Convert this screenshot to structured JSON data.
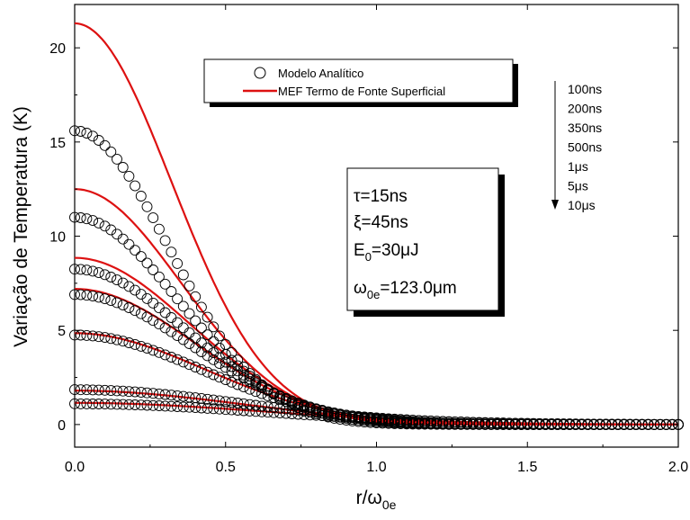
{
  "chart_data": {
    "type": "line",
    "xlabel": "r/ω",
    "xlabel_sub": "0e",
    "ylabel": "Variação de Temperatura (K)",
    "xlim": [
      0,
      2.0
    ],
    "ylim": [
      -1.2,
      22.3
    ],
    "xticks": [
      0.0,
      0.5,
      1.0,
      1.5,
      2.0
    ],
    "xtick_labels": [
      "0.0",
      "0.5",
      "1.0",
      "1.5",
      "2.0"
    ],
    "yticks": [
      0,
      5,
      10,
      15,
      20
    ],
    "ytick_labels": [
      "0",
      "5",
      "10",
      "15",
      "20"
    ],
    "legend": {
      "position": "top-center",
      "entries": [
        {
          "label": "Modelo Analítico",
          "marker": "open-circle"
        },
        {
          "label": "MEF Termo de Fonte Superficial",
          "marker": "red-line"
        }
      ]
    },
    "time_labels": [
      "100ns",
      "200ns",
      "350ns",
      "500ns",
      "1μs",
      "5μs",
      "10μs"
    ],
    "parameters": {
      "tau": "τ=15ns",
      "xi": "ξ=45ns",
      "energy": {
        "base": "E",
        "sub": "0",
        "rest": "=30μJ"
      },
      "omega": {
        "base": "ω",
        "sub": "0e",
        "rest": "=123.0μm"
      }
    },
    "colors": {
      "fem_line": "#dd1111",
      "marker_stroke": "#000000"
    },
    "series_note": "peak temperatures and Gaussian widths per time",
    "series": [
      {
        "time": "100ns",
        "analytic_peak": 15.6,
        "analytic_width": 0.62,
        "fem_peak": 21.3,
        "fem_width": 0.64
      },
      {
        "time": "200ns",
        "analytic_peak": 11.0,
        "analytic_width": 0.68,
        "fem_peak": 12.5,
        "fem_width": 0.7
      },
      {
        "time": "350ns",
        "analytic_peak": 8.25,
        "analytic_width": 0.74,
        "fem_peak": 8.85,
        "fem_width": 0.76
      },
      {
        "time": "500ns",
        "analytic_peak": 6.9,
        "analytic_width": 0.78,
        "fem_peak": 7.2,
        "fem_width": 0.79
      },
      {
        "time": "1μs",
        "analytic_peak": 4.75,
        "analytic_width": 0.85,
        "fem_peak": 4.85,
        "fem_width": 0.86
      },
      {
        "time": "5μs",
        "analytic_peak": 1.85,
        "analytic_width": 1.1,
        "fem_peak": 1.8,
        "fem_width": 1.1
      },
      {
        "time": "10μs",
        "analytic_peak": 1.1,
        "analytic_width": 1.25,
        "fem_peak": 1.15,
        "fem_width": 1.25
      }
    ]
  }
}
